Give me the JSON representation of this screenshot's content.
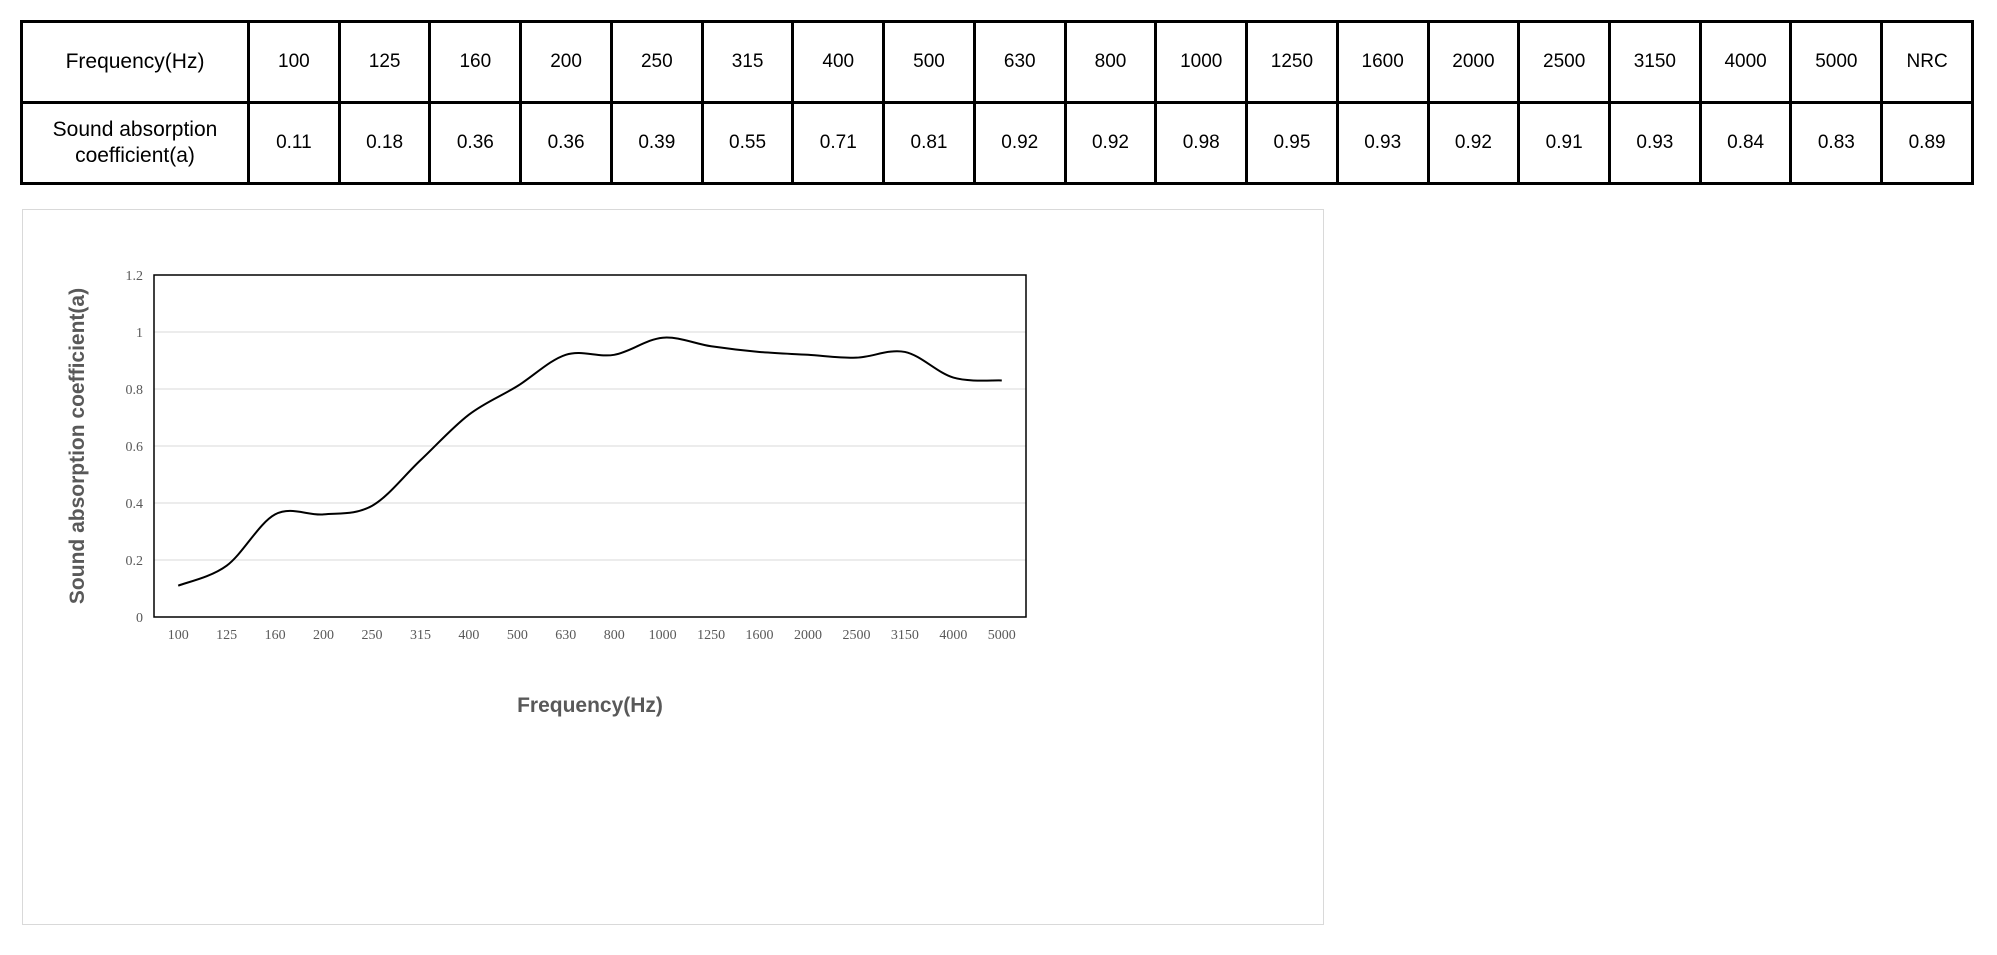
{
  "table": {
    "row_headers": [
      "Frequency(Hz)",
      "Sound absorption coefficient(a)"
    ],
    "frequencies": [
      "100",
      "125",
      "160",
      "200",
      "250",
      "315",
      "400",
      "500",
      "630",
      "800",
      "1000",
      "1250",
      "1600",
      "2000",
      "2500",
      "3150",
      "4000",
      "5000",
      "NRC"
    ],
    "coefficients": [
      "0.11",
      "0.18",
      "0.36",
      "0.36",
      "0.39",
      "0.55",
      "0.71",
      "0.81",
      "0.92",
      "0.92",
      "0.98",
      "0.95",
      "0.93",
      "0.92",
      "0.91",
      "0.93",
      "0.84",
      "0.83",
      "0.89"
    ]
  },
  "chart_data": {
    "type": "line",
    "title": "",
    "xlabel": "Frequency(Hz)",
    "ylabel": "Sound absorption coefficient(a)",
    "categories": [
      "100",
      "125",
      "160",
      "200",
      "250",
      "315",
      "400",
      "500",
      "630",
      "800",
      "1000",
      "1250",
      "1600",
      "2000",
      "2500",
      "3150",
      "4000",
      "5000"
    ],
    "values": [
      0.11,
      0.18,
      0.36,
      0.36,
      0.39,
      0.55,
      0.71,
      0.81,
      0.92,
      0.92,
      0.98,
      0.95,
      0.93,
      0.92,
      0.91,
      0.93,
      0.84,
      0.83
    ],
    "ylim": [
      0,
      1.2
    ],
    "yticks": [
      "0",
      "0.2",
      "0.4",
      "0.6",
      "0.8",
      "1",
      "1.2"
    ],
    "grid": true,
    "legend": "none",
    "line_color": "#000000",
    "grid_color": "#d9d9d9"
  }
}
